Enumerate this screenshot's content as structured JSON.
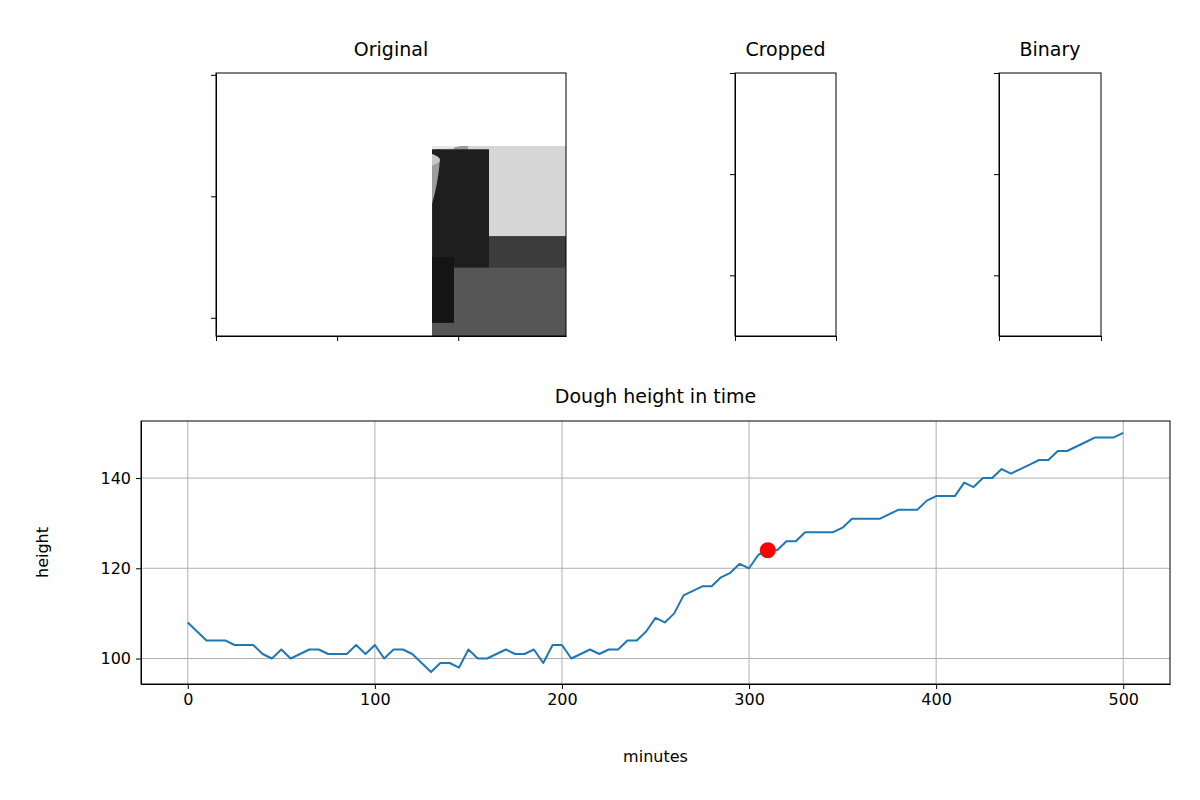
{
  "chart_data": [
    {
      "type": "image",
      "title": "Original",
      "xlim": [
        0,
        578
      ],
      "ylim": [
        430,
        -3
      ],
      "xticks": [
        0,
        200,
        400
      ],
      "yticks": [
        0,
        200,
        400
      ],
      "tick_labels": false
    },
    {
      "type": "image",
      "title": "Cropped",
      "xlim": [
        0,
        50
      ],
      "ylim": [
        130,
        0
      ],
      "xticks": [
        0,
        50
      ],
      "yticks": [
        0,
        50,
        100
      ],
      "tick_labels": false
    },
    {
      "type": "image",
      "title": "Binary",
      "xlim": [
        0,
        50
      ],
      "ylim": [
        130,
        0
      ],
      "xticks": [
        0,
        50
      ],
      "yticks": [
        0,
        50,
        100
      ],
      "tick_labels": false
    },
    {
      "type": "line",
      "title": "Dough height in time",
      "x_label": "minutes",
      "y_label": "height",
      "x": [
        0,
        5,
        10,
        15,
        20,
        25,
        30,
        35,
        40,
        45,
        50,
        55,
        60,
        65,
        70,
        75,
        80,
        85,
        90,
        95,
        100,
        105,
        110,
        115,
        120,
        125,
        130,
        135,
        140,
        145,
        150,
        155,
        160,
        165,
        170,
        175,
        180,
        185,
        190,
        195,
        200,
        205,
        210,
        215,
        220,
        225,
        230,
        235,
        240,
        245,
        250,
        255,
        260,
        265,
        270,
        275,
        280,
        285,
        290,
        295,
        300,
        305,
        310,
        315,
        320,
        325,
        330,
        335,
        340,
        345,
        350,
        355,
        360,
        365,
        370,
        375,
        380,
        385,
        390,
        395,
        400,
        405,
        410,
        415,
        420,
        425,
        430,
        435,
        440,
        445,
        450,
        455,
        460,
        465,
        470,
        475,
        480,
        485,
        490,
        495,
        500
      ],
      "series": [
        {
          "color": "#1f77b4",
          "values": [
            108,
            106,
            104,
            104,
            104,
            103,
            103,
            103,
            101,
            100,
            102,
            100,
            101,
            102,
            102,
            101,
            101,
            101,
            103,
            101,
            103,
            100,
            102,
            102,
            101,
            99,
            97,
            99,
            99,
            98,
            102,
            100,
            100,
            101,
            102,
            101,
            101,
            102,
            99,
            103,
            103,
            100,
            101,
            102,
            101,
            102,
            102,
            104,
            104,
            106,
            109,
            108,
            110,
            114,
            115,
            116,
            116,
            118,
            119,
            121,
            120,
            123,
            124,
            124,
            126,
            126,
            128,
            128,
            128,
            128,
            129,
            131,
            131,
            131,
            131,
            132,
            133,
            133,
            133,
            135,
            136,
            136,
            136,
            139,
            138,
            140,
            140,
            142,
            141,
            142,
            143,
            144,
            144,
            146,
            146,
            147,
            148,
            149,
            149,
            149,
            150
          ]
        },
        {
          "type": "scatter",
          "color": "red",
          "marker": "circle",
          "values": [
            null,
            null,
            null,
            null,
            null,
            null,
            null,
            null,
            null,
            null,
            null,
            null,
            null,
            null,
            null,
            null,
            null,
            null,
            null,
            null,
            null,
            null,
            null,
            null,
            null,
            null,
            null,
            null,
            null,
            null,
            null,
            null,
            null,
            null,
            null,
            null,
            null,
            null,
            null,
            null,
            null,
            null,
            null,
            null,
            null,
            null,
            null,
            null,
            null,
            null,
            null,
            null,
            null,
            null,
            null,
            null,
            null,
            null,
            null,
            null,
            null,
            null,
            124,
            null,
            null,
            null,
            null,
            null,
            null,
            null,
            null,
            null,
            null,
            null,
            null,
            null,
            null,
            null,
            null,
            null,
            null,
            null,
            null,
            null,
            null,
            null,
            null,
            null,
            null,
            null,
            null,
            null,
            null,
            null,
            null,
            null,
            null,
            null,
            null,
            null,
            null
          ]
        }
      ],
      "xlim": [
        -25,
        525
      ],
      "ylim": [
        94.35,
        152.65
      ],
      "xticks": [
        0,
        100,
        200,
        300,
        400,
        500
      ],
      "yticks": [
        100,
        120,
        140
      ],
      "grid": true
    }
  ]
}
